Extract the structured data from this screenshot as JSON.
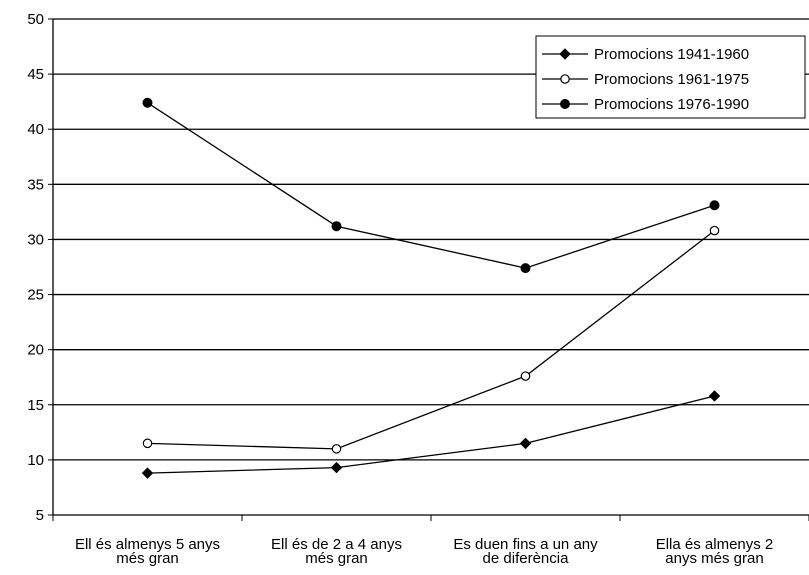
{
  "chart_data": {
    "type": "line",
    "title": "",
    "xlabel": "",
    "ylabel": "",
    "ylim": [
      5,
      50
    ],
    "yticks": [
      5,
      10,
      15,
      20,
      25,
      30,
      35,
      40,
      45,
      50
    ],
    "grid": "horizontal",
    "legend_position": "top-right",
    "categories": [
      [
        "Ell és almenys 5 anys",
        "més gran"
      ],
      [
        "Ell és de 2 a 4 anys",
        "més gran"
      ],
      [
        "Es duen fins a un any",
        "de diferència"
      ],
      [
        "Ella és almenys 2",
        "anys més gran"
      ]
    ],
    "series": [
      {
        "name": "Promocions 1941-1960",
        "marker": "diamond",
        "values": [
          8.8,
          9.3,
          11.5,
          15.8
        ]
      },
      {
        "name": "Promocions 1961-1975",
        "marker": "open-circle",
        "values": [
          11.5,
          11.0,
          17.6,
          30.8
        ]
      },
      {
        "name": "Promocions 1976-1990",
        "marker": "filled-circle",
        "values": [
          42.4,
          31.2,
          27.4,
          33.1
        ]
      }
    ],
    "colors": {
      "line": "#000000",
      "grid": "#000000",
      "background": "#ffffff"
    }
  }
}
